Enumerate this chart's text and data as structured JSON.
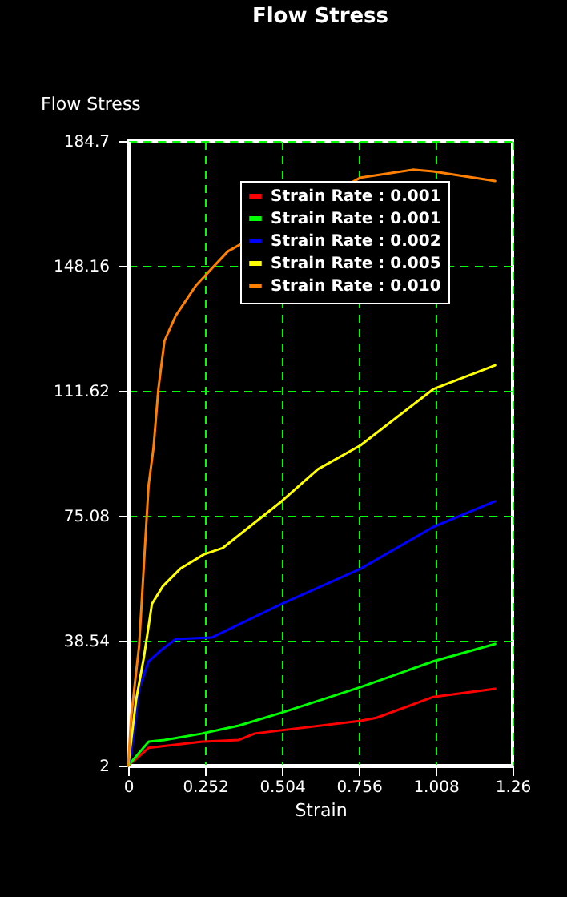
{
  "chart_data": {
    "type": "line",
    "title": "Flow Stress",
    "xlabel": "Strain",
    "ylabel": "Flow Stress",
    "xlim": [
      0,
      1.26
    ],
    "xticks": [
      0,
      0.252,
      0.504,
      0.756,
      1.008,
      1.26
    ],
    "ylim": [
      2,
      184.7
    ],
    "yticks": [
      2,
      38.54,
      75.08,
      111.62,
      148.16,
      184.7
    ],
    "grid": true,
    "legend": "top",
    "series": [
      {
        "name": "Strain Rate : 0.001",
        "color": "#ff0000",
        "x": [
          0,
          0.067,
          0.243,
          0.363,
          0.415,
          0.762,
          0.814,
          1.0,
          1.203
        ],
        "values": [
          2,
          7.2,
          9.0,
          9.5,
          11.4,
          15.1,
          16.0,
          22.1,
          24.5
        ]
      },
      {
        "name": "Strain Rate : 0.001",
        "color": "#00ff00",
        "x": [
          0,
          0.067,
          0.119,
          0.243,
          0.363,
          0.503,
          0.762,
          1.0,
          1.203
        ],
        "values": [
          2,
          9.0,
          9.5,
          11.4,
          13.7,
          17.5,
          25.0,
          32.5,
          37.6
        ]
      },
      {
        "name": "Strain Rate : 0.002",
        "color": "#0000ff",
        "x": [
          0,
          0.01,
          0.036,
          0.067,
          0.114,
          0.156,
          0.275,
          0.503,
          0.762,
          1.0,
          1.203
        ],
        "values": [
          2,
          5.7,
          24.5,
          32.5,
          36.2,
          39.0,
          39.5,
          49.3,
          59.6,
          71.8,
          79.3
        ]
      },
      {
        "name": "Strain Rate : 0.005",
        "color": "#ffff00",
        "x": [
          0,
          0.026,
          0.052,
          0.078,
          0.114,
          0.171,
          0.249,
          0.311,
          0.503,
          0.622,
          0.762,
          1.0,
          1.203
        ],
        "values": [
          2,
          21.2,
          33.9,
          49.3,
          54.5,
          59.6,
          63.8,
          65.7,
          79.3,
          88.7,
          95.7,
          112.1,
          119.1
        ]
      },
      {
        "name": "Strain Rate : 0.010",
        "color": "#ff8000",
        "x": [
          0,
          0.01,
          0.036,
          0.067,
          0.083,
          0.099,
          0.119,
          0.156,
          0.223,
          0.327,
          0.762,
          0.933,
          1.0,
          1.203
        ],
        "values": [
          2,
          16.5,
          37.1,
          84.0,
          94.8,
          112.1,
          126.2,
          133.6,
          142.5,
          152.4,
          174.0,
          176.3,
          175.8,
          173.0
        ]
      }
    ]
  }
}
